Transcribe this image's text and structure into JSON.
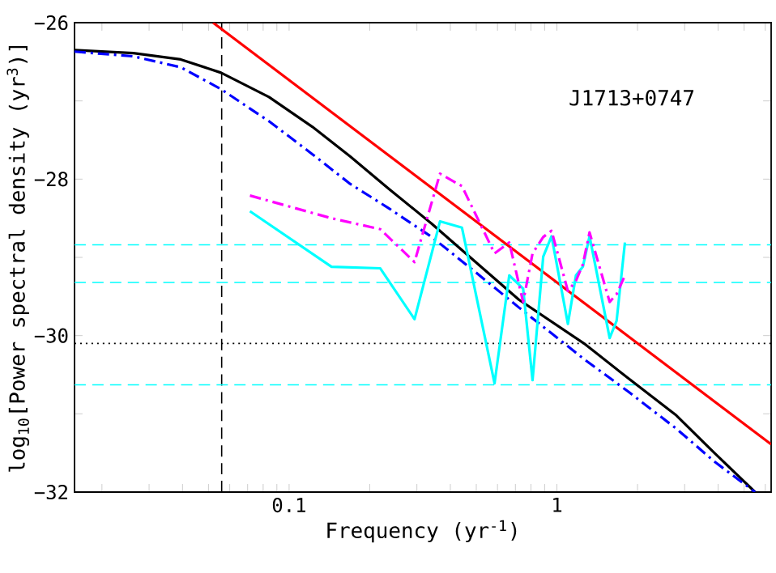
{
  "chart_data": {
    "type": "line",
    "xlabel": "Frequency (yr$^{-1}$)",
    "ylabel": "log$_{10}$[Power spectral density (yr$^{3}$)]",
    "annotations": [
      "J1713+0747"
    ],
    "log": "x",
    "grid": false,
    "marker": "none",
    "xlim": [
      0.0158,
      6.31
    ],
    "ylim": [
      -32,
      -26
    ],
    "xticks": [
      {
        "value": 0.02,
        "label": null
      },
      {
        "value": 0.03,
        "label": null
      },
      {
        "value": 0.04,
        "label": null
      },
      {
        "value": 0.05,
        "label": null
      },
      {
        "value": 0.06,
        "label": null
      },
      {
        "value": 0.07,
        "label": null
      },
      {
        "value": 0.08,
        "label": null
      },
      {
        "value": 0.09,
        "label": null
      },
      0.1,
      {
        "value": 0.2,
        "label": null
      },
      {
        "value": 0.3,
        "label": null
      },
      {
        "value": 0.4,
        "label": null
      },
      {
        "value": 0.5,
        "label": null
      },
      {
        "value": 0.6,
        "label": null
      },
      {
        "value": 0.7,
        "label": null
      },
      {
        "value": 0.8,
        "label": null
      },
      {
        "value": 0.9,
        "label": null
      },
      1,
      {
        "value": 2,
        "label": null
      },
      {
        "value": 3,
        "label": null
      },
      {
        "value": 4,
        "label": null
      },
      {
        "value": 5,
        "label": null
      },
      {
        "value": 6,
        "label": null
      }
    ],
    "yticks": [
      {
        "value": -32,
        "label": "−32"
      },
      {
        "value": -31,
        "label": null
      },
      {
        "value": -30,
        "label": "−30"
      },
      {
        "value": -29,
        "label": null
      },
      {
        "value": -28,
        "label": "−28"
      },
      {
        "value": -27,
        "label": null
      },
      {
        "value": -26,
        "label": "−26"
      }
    ],
    "series": [
      {
        "color": "#000000",
        "line_style": "solid",
        "x": [
          0.0158,
          0.0262,
          0.0394,
          0.0557,
          0.0841,
          0.122,
          0.169,
          0.235,
          0.341,
          0.497,
          0.721,
          1.262,
          1.837,
          2.793,
          3.873,
          5.495
        ],
        "values": [
          -26.35,
          -26.39,
          -26.47,
          -26.64,
          -26.95,
          -27.33,
          -27.71,
          -28.12,
          -28.57,
          -29.06,
          -29.54,
          -30.1,
          -30.54,
          -31.02,
          -31.5,
          -32
        ]
      },
      {
        "color": "#0000ff",
        "line_style": "dashdot",
        "x": [
          0.0158,
          0.0262,
          0.0394,
          0.0557,
          0.0841,
          0.122,
          0.169,
          0.235,
          0.341,
          0.497,
          0.721,
          1.262,
          1.837,
          2.793,
          3.873,
          5.495
        ],
        "values": [
          -26.37,
          -26.43,
          -26.57,
          -26.85,
          -27.26,
          -27.68,
          -28.06,
          -28.37,
          -28.74,
          -29.19,
          -29.64,
          -30.3,
          -30.71,
          -31.19,
          -31.61,
          -32
        ]
      },
      {
        "color": "#ff0000",
        "line_style": "solid",
        "x": [
          0.052,
          6.31
        ],
        "values": [
          -26,
          -31.39
        ]
      },
      {
        "color": "#00ffff",
        "line_style": "solid",
        "x": [
          0.0714,
          0.144,
          0.219,
          0.294,
          0.366,
          0.442,
          0.585,
          0.664,
          0.748,
          0.811,
          0.889,
          0.955,
          1.099,
          1.178,
          1.25,
          1.324,
          1.574,
          1.671,
          1.795
        ],
        "values": [
          -28.41,
          -29.12,
          -29.14,
          -29.79,
          -28.54,
          -28.62,
          -30.61,
          -29.23,
          -29.4,
          -30.57,
          -28.99,
          -28.73,
          -29.85,
          -29.23,
          -29.12,
          -28.73,
          -30.03,
          -29.81,
          -28.81
        ]
      },
      {
        "color": "#ff00ff",
        "line_style": "dashdot",
        "x": [
          0.0714,
          0.144,
          0.219,
          0.294,
          0.366,
          0.442,
          0.585,
          0.664,
          0.748,
          0.811,
          0.889,
          0.955,
          1.099,
          1.178,
          1.25,
          1.324,
          1.574,
          1.671,
          1.795
        ],
        "values": [
          -28.21,
          -28.5,
          -28.64,
          -29.06,
          -27.93,
          -28.09,
          -28.95,
          -28.81,
          -29.57,
          -28.95,
          -28.74,
          -28.66,
          -29.43,
          -29.3,
          -29.09,
          -28.68,
          -29.57,
          -29.47,
          -29.23
        ]
      }
    ],
    "ref_lines": [
      {
        "axis": "x",
        "value": 0.056,
        "color": "#000000",
        "line_style": "dashed"
      },
      {
        "axis": "y",
        "value": -28.84,
        "color": "#00ffff",
        "line_style": "dashed"
      },
      {
        "axis": "y",
        "value": -29.32,
        "color": "#00ffff",
        "line_style": "dashed"
      },
      {
        "axis": "y",
        "value": -30.63,
        "color": "#00ffff",
        "line_style": "dashed"
      },
      {
        "axis": "y",
        "value": -30.1,
        "color": "#000000",
        "line_style": "dotted"
      }
    ]
  }
}
